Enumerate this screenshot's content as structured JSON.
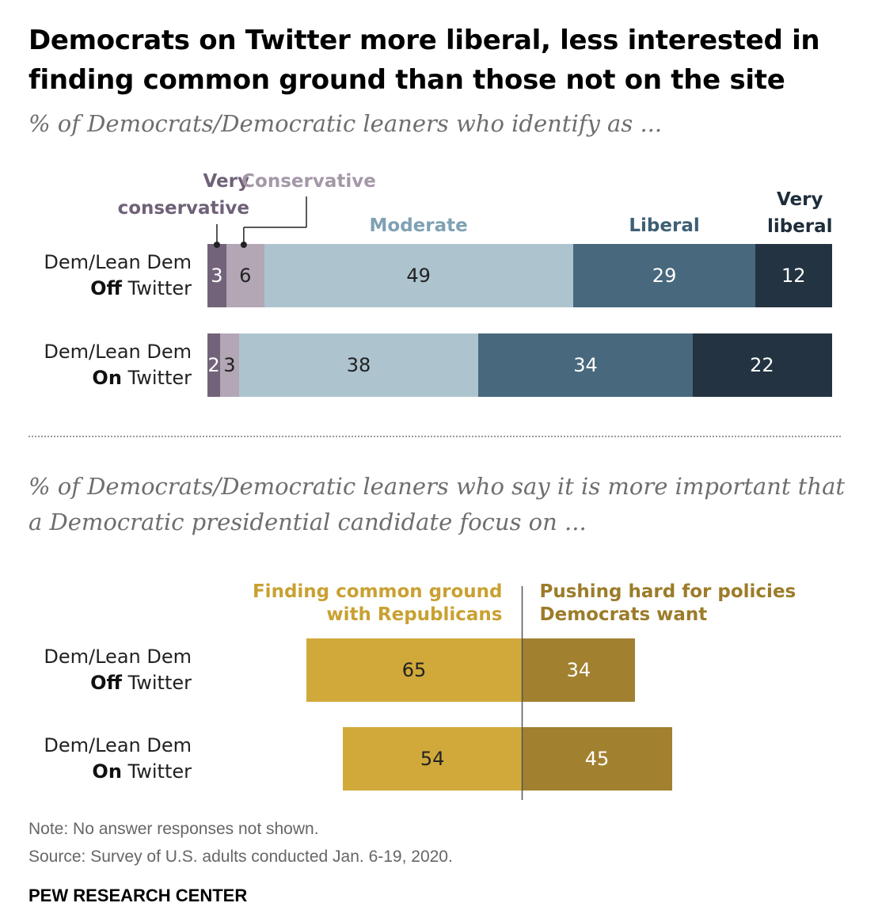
{
  "title": "Democrats on Twitter more liberal, less interested in finding common ground than those not on the site",
  "chart_data": [
    {
      "type": "bar",
      "orientation": "horizontal",
      "stacked": true,
      "subtitle": "% of Democrats/Democratic leaners who identify as ...",
      "rows": [
        {
          "label_prefix": "Dem/Lean Dem",
          "label_bold": "Off",
          "label_suffix": " Twitter"
        },
        {
          "label_prefix": "Dem/Lean Dem",
          "label_bold": "On",
          "label_suffix": " Twitter"
        }
      ],
      "categories": [
        "Dem/Lean Dem Off Twitter",
        "Dem/Lean Dem On Twitter"
      ],
      "series": [
        {
          "name": "Very conservative",
          "label_lines": [
            "Very",
            "conservative"
          ],
          "color": "#72637a",
          "label_color": "#6f6178",
          "text_color": "#ffffff",
          "values": [
            3,
            2
          ]
        },
        {
          "name": "Conservative",
          "label_lines": [
            "Conservative"
          ],
          "color": "#b3a6b5",
          "label_color": "#a597a8",
          "text_color": "#222222",
          "values": [
            6,
            3
          ]
        },
        {
          "name": "Moderate",
          "label_lines": [
            "Moderate"
          ],
          "color": "#adc4cf",
          "label_color": "#7fa1b4",
          "text_color": "#222222",
          "values": [
            49,
            38
          ]
        },
        {
          "name": "Liberal",
          "label_lines": [
            "Liberal"
          ],
          "color": "#48687d",
          "label_color": "#3e5f75",
          "text_color": "#ffffff",
          "values": [
            29,
            34
          ]
        },
        {
          "name": "Very liberal",
          "label_lines": [
            "Very",
            "liberal"
          ],
          "color": "#233342",
          "label_color": "#1e2c3b",
          "text_color": "#ffffff",
          "values": [
            12,
            22
          ]
        }
      ]
    },
    {
      "type": "bar",
      "orientation": "horizontal",
      "diverging": true,
      "subtitle": "% of Democrats/Democratic leaners who say it is more important that a Democratic presidential candidate focus on ...",
      "rows": [
        {
          "label_prefix": "Dem/Lean Dem",
          "label_bold": "Off",
          "label_suffix": " Twitter"
        },
        {
          "label_prefix": "Dem/Lean Dem",
          "label_bold": "On",
          "label_suffix": " Twitter"
        }
      ],
      "categories": [
        "Dem/Lean Dem Off Twitter",
        "Dem/Lean Dem On Twitter"
      ],
      "series": [
        {
          "name": "Finding common ground with Republicans",
          "label_lines": [
            "Finding common ground",
            "with Republicans"
          ],
          "color": "#d1a93a",
          "label_color": "#c9a132",
          "text_color": "#222222",
          "values": [
            65,
            54
          ]
        },
        {
          "name": "Pushing hard for policies Democrats want",
          "label_lines": [
            "Pushing hard for policies",
            "Democrats want"
          ],
          "color": "#a1802f",
          "label_color": "#9c7c2a",
          "text_color": "#ffffff",
          "values": [
            34,
            45
          ]
        }
      ]
    }
  ],
  "notes": {
    "note": "Note: No answer responses not shown.",
    "source": "Source: Survey of U.S. adults conducted Jan. 6-19, 2020."
  },
  "footer": "PEW RESEARCH CENTER"
}
